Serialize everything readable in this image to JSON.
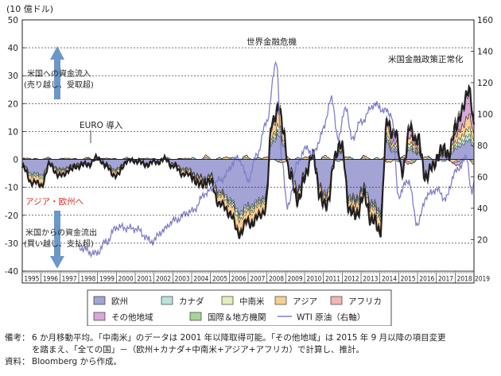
{
  "chart_data": {
    "type": "area",
    "unit_label": "(10 億ドル)",
    "y_left": {
      "min": -40,
      "max": 50,
      "ticks": [
        50,
        40,
        30,
        20,
        10,
        0,
        -10,
        -20,
        -30,
        -40
      ]
    },
    "y_right": {
      "min": 0,
      "max": 160,
      "ticks": [
        160,
        140,
        120,
        100,
        80,
        60,
        40,
        20
      ]
    },
    "x_years": [
      "1995",
      "1996",
      "1997",
      "1998",
      "1999",
      "2000",
      "2001",
      "2002",
      "2003",
      "2004",
      "2005",
      "2006",
      "2007",
      "2008",
      "2009",
      "2010",
      "2011",
      "2012",
      "2013",
      "2014",
      "2015",
      "2016",
      "2017",
      "2018",
      "2019"
    ],
    "net_flow_keypoints": [
      {
        "t": 1995.0,
        "v": -3
      },
      {
        "t": 1995.5,
        "v": -8
      },
      {
        "t": 1996.0,
        "v": -9
      },
      {
        "t": 1996.5,
        "v": -2
      },
      {
        "t": 1997.0,
        "v": -6
      },
      {
        "t": 1997.5,
        "v": -4
      },
      {
        "t": 1998.0,
        "v": -2
      },
      {
        "t": 1998.5,
        "v": -2
      },
      {
        "t": 1999.0,
        "v": 1
      },
      {
        "t": 1999.5,
        "v": -3
      },
      {
        "t": 2000.0,
        "v": -6
      },
      {
        "t": 2000.5,
        "v": -1
      },
      {
        "t": 2001.0,
        "v": 0
      },
      {
        "t": 2001.5,
        "v": -2
      },
      {
        "t": 2002.0,
        "v": -1
      },
      {
        "t": 2002.5,
        "v": 0
      },
      {
        "t": 2003.0,
        "v": -2
      },
      {
        "t": 2003.5,
        "v": -5
      },
      {
        "t": 2004.0,
        "v": -6
      },
      {
        "t": 2004.5,
        "v": -9
      },
      {
        "t": 2005.0,
        "v": -8
      },
      {
        "t": 2005.5,
        "v": -16
      },
      {
        "t": 2006.0,
        "v": -19
      },
      {
        "t": 2006.5,
        "v": -26
      },
      {
        "t": 2007.0,
        "v": -23
      },
      {
        "t": 2007.5,
        "v": -21
      },
      {
        "t": 2007.9,
        "v": -18
      },
      {
        "t": 2008.3,
        "v": 14
      },
      {
        "t": 2008.6,
        "v": 20
      },
      {
        "t": 2008.9,
        "v": 10
      },
      {
        "t": 2009.2,
        "v": -5
      },
      {
        "t": 2009.6,
        "v": -14
      },
      {
        "t": 2010.0,
        "v": -8
      },
      {
        "t": 2010.4,
        "v": 3
      },
      {
        "t": 2010.8,
        "v": -12
      },
      {
        "t": 2011.2,
        "v": -18
      },
      {
        "t": 2011.6,
        "v": 2
      },
      {
        "t": 2012.0,
        "v": 5
      },
      {
        "t": 2012.4,
        "v": -20
      },
      {
        "t": 2012.8,
        "v": -18
      },
      {
        "t": 2013.2,
        "v": -14
      },
      {
        "t": 2013.6,
        "v": -22
      },
      {
        "t": 2014.0,
        "v": -25
      },
      {
        "t": 2014.4,
        "v": 14
      },
      {
        "t": 2014.8,
        "v": 10
      },
      {
        "t": 2015.2,
        "v": -4
      },
      {
        "t": 2015.6,
        "v": 12
      },
      {
        "t": 2016.0,
        "v": 8
      },
      {
        "t": 2016.4,
        "v": -6
      },
      {
        "t": 2016.8,
        "v": -3
      },
      {
        "t": 2017.2,
        "v": 4
      },
      {
        "t": 2017.6,
        "v": 2
      },
      {
        "t": 2018.0,
        "v": 12
      },
      {
        "t": 2018.4,
        "v": 20
      },
      {
        "t": 2018.8,
        "v": 24
      },
      {
        "t": 2019.0,
        "v": 15
      }
    ],
    "wti_keypoints": [
      {
        "t": 1998.0,
        "v": 15
      },
      {
        "t": 1998.9,
        "v": 11
      },
      {
        "t": 1999.5,
        "v": 19
      },
      {
        "t": 2000.0,
        "v": 28
      },
      {
        "t": 2001.0,
        "v": 27
      },
      {
        "t": 2001.9,
        "v": 19
      },
      {
        "t": 2002.5,
        "v": 26
      },
      {
        "t": 2003.0,
        "v": 32
      },
      {
        "t": 2004.0,
        "v": 38
      },
      {
        "t": 2004.8,
        "v": 50
      },
      {
        "t": 2005.5,
        "v": 58
      },
      {
        "t": 2006.5,
        "v": 72
      },
      {
        "t": 2007.0,
        "v": 58
      },
      {
        "t": 2007.5,
        "v": 75
      },
      {
        "t": 2008.0,
        "v": 96
      },
      {
        "t": 2008.5,
        "v": 134
      },
      {
        "t": 2008.8,
        "v": 70
      },
      {
        "t": 2009.1,
        "v": 40
      },
      {
        "t": 2009.6,
        "v": 68
      },
      {
        "t": 2010.0,
        "v": 78
      },
      {
        "t": 2010.5,
        "v": 75
      },
      {
        "t": 2011.0,
        "v": 90
      },
      {
        "t": 2011.4,
        "v": 110
      },
      {
        "t": 2011.8,
        "v": 85
      },
      {
        "t": 2012.2,
        "v": 105
      },
      {
        "t": 2012.5,
        "v": 84
      },
      {
        "t": 2013.0,
        "v": 95
      },
      {
        "t": 2013.7,
        "v": 106
      },
      {
        "t": 2014.3,
        "v": 102
      },
      {
        "t": 2014.6,
        "v": 100
      },
      {
        "t": 2015.0,
        "v": 48
      },
      {
        "t": 2015.5,
        "v": 58
      },
      {
        "t": 2016.0,
        "v": 30
      },
      {
        "t": 2016.5,
        "v": 48
      },
      {
        "t": 2017.0,
        "v": 52
      },
      {
        "t": 2017.5,
        "v": 46
      },
      {
        "t": 2018.0,
        "v": 63
      },
      {
        "t": 2018.6,
        "v": 72
      },
      {
        "t": 2018.9,
        "v": 50
      },
      {
        "t": 2019.0,
        "v": 55
      }
    ],
    "annotations": {
      "inflow": [
        "米国への資金流入",
        "(売り越し、受取超)"
      ],
      "euro": "EURO 導入",
      "crisis": "世界金融危機",
      "normalization": "米国金融政策正常化",
      "asia_europe": "アジア・欧州へ",
      "outflow": [
        "米国からの資金流出",
        "(買い越し、支払超)"
      ]
    },
    "legend": [
      {
        "label": "欧州",
        "color": "#a3a3d6",
        "kind": "box"
      },
      {
        "label": "カナダ",
        "color": "#b8e3da",
        "kind": "box"
      },
      {
        "label": "中南米",
        "color": "#e2eebb",
        "kind": "box"
      },
      {
        "label": "アジア",
        "color": "#f7cf92",
        "kind": "box"
      },
      {
        "label": "アフリカ",
        "color": "#f3b4b4",
        "kind": "box"
      },
      {
        "label": "その他地域",
        "color": "#d8a8d8",
        "kind": "box"
      },
      {
        "label": "国際＆地方機関",
        "color": "#a8d49a",
        "kind": "box"
      },
      {
        "label": "WTI 原油（右軸）",
        "color": "#7f7fc9",
        "kind": "line"
      }
    ],
    "colors": {
      "europe": "#a3a3d6",
      "canada": "#b8e3da",
      "latam": "#e2eebb",
      "asia": "#f7cf92",
      "africa": "#f3b4b4",
      "other": "#d8a8d8",
      "intl": "#a8d49a",
      "wti": "#7f7fc9",
      "arrow": "#6c97c9",
      "red_text": "#d52b1e"
    }
  },
  "footnotes": {
    "note_head": "備考：",
    "note_line1": "6 か月移動平均。「中南米」のデータは 2001 年以降取得可能。「その他地域」は 2015 年 9 月以降の項目変更",
    "note_line2": "を踏まえ、「全ての国」－（欧州+カナダ+中南米+アジア+アフリカ）で計算し、推計。",
    "source_head": "資料：",
    "source_text": "Bloomberg から作成。"
  }
}
